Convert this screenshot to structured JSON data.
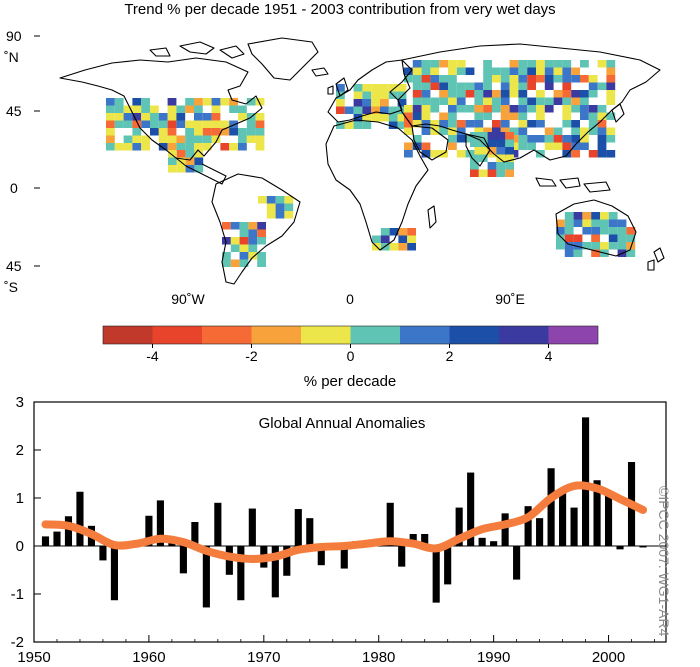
{
  "map": {
    "title": "Trend % per decade 1951 - 2003 contribution from very wet days",
    "lat_labels": [
      {
        "lat": 90,
        "text": "90"
      },
      {
        "lat": 90,
        "text": "˚N"
      },
      {
        "lat": 45,
        "text": "45"
      },
      {
        "lat": 0,
        "text": "0"
      },
      {
        "lat": -45,
        "text": "45"
      },
      {
        "lat": -45,
        "text": "˚S"
      }
    ],
    "lon_labels": [
      {
        "lon": -90,
        "text": "90˚W"
      },
      {
        "lon": 0,
        "text": "0"
      },
      {
        "lon": 90,
        "text": "90˚E"
      }
    ]
  },
  "colorbar": {
    "label": "% per decade",
    "bins": [
      {
        "from": -5,
        "to": -4,
        "color": "#c0392b"
      },
      {
        "from": -4,
        "to": -3,
        "color": "#e8442c"
      },
      {
        "from": -3,
        "to": -2,
        "color": "#f56a35"
      },
      {
        "from": -2,
        "to": -1,
        "color": "#f7a23b"
      },
      {
        "from": -1,
        "to": 0,
        "color": "#ece64a"
      },
      {
        "from": 0,
        "to": 1,
        "color": "#5fc4b4"
      },
      {
        "from": 1,
        "to": 2,
        "color": "#3c76c8"
      },
      {
        "from": 2,
        "to": 3,
        "color": "#1c4fa8"
      },
      {
        "from": 3,
        "to": 4,
        "color": "#3a3aa0"
      },
      {
        "from": 4,
        "to": 5,
        "color": "#8e44ad"
      }
    ],
    "ticks": [
      -4,
      -2,
      0,
      2,
      4
    ],
    "tick_labels": [
      "-4",
      "-2",
      "0",
      "2",
      "4"
    ]
  },
  "chart_data": {
    "type": "bar",
    "title": "Global Annual Anomalies",
    "x": [
      1951,
      1952,
      1953,
      1954,
      1955,
      1956,
      1957,
      1958,
      1959,
      1960,
      1961,
      1962,
      1963,
      1964,
      1965,
      1966,
      1967,
      1968,
      1969,
      1970,
      1971,
      1972,
      1973,
      1974,
      1975,
      1976,
      1977,
      1978,
      1979,
      1980,
      1981,
      1982,
      1983,
      1984,
      1985,
      1986,
      1987,
      1988,
      1989,
      1990,
      1991,
      1992,
      1993,
      1994,
      1995,
      1996,
      1997,
      1998,
      1999,
      2000,
      2001,
      2002,
      2003
    ],
    "values": [
      0.2,
      0.3,
      0.62,
      1.13,
      0.42,
      -0.3,
      -1.13,
      -0.02,
      0.05,
      0.63,
      0.95,
      0.1,
      -0.57,
      0.5,
      -1.28,
      0.9,
      -0.6,
      -1.13,
      0.78,
      -0.45,
      -1.07,
      -0.62,
      0.77,
      0.58,
      -0.4,
      0.05,
      -0.47,
      0.1,
      0.07,
      0.13,
      0.9,
      -0.43,
      0.25,
      0.25,
      -1.18,
      -0.8,
      0.8,
      1.53,
      0.17,
      0.1,
      0.68,
      -0.7,
      0.83,
      0.58,
      1.62,
      1.13,
      0.8,
      2.68,
      1.37,
      1.05,
      -0.07,
      1.75,
      -0.03
    ],
    "smooth_x": [
      1951,
      1953,
      1955,
      1957,
      1959,
      1961,
      1963,
      1965,
      1967,
      1969,
      1971,
      1973,
      1975,
      1977,
      1979,
      1981,
      1983,
      1985,
      1987,
      1989,
      1991,
      1993,
      1995,
      1997,
      1999,
      2001,
      2003
    ],
    "smooth_values": [
      0.45,
      0.42,
      0.25,
      0.02,
      0.05,
      0.15,
      0.08,
      -0.1,
      -0.22,
      -0.27,
      -0.22,
      -0.08,
      -0.02,
      0.0,
      0.05,
      0.1,
      0.05,
      -0.05,
      0.15,
      0.35,
      0.45,
      0.6,
      1.0,
      1.25,
      1.2,
      0.98,
      0.75
    ],
    "xlim": [
      1950,
      2005
    ],
    "ylim": [
      -2,
      3
    ],
    "xticks": [
      1950,
      1960,
      1970,
      1980,
      1990,
      2000
    ],
    "xtick_labels": [
      "1950",
      "1960",
      "1970",
      "1980",
      "1990",
      "2000"
    ],
    "yticks": [
      -2,
      -1,
      0,
      1,
      2,
      3
    ],
    "ytick_labels": [
      "-2",
      "-1",
      "0",
      "1",
      "2",
      "3"
    ],
    "bar_color": "#000000",
    "smooth_color": "#f47c3c"
  },
  "credit": "©IPCC 2007: WG1-AR4"
}
